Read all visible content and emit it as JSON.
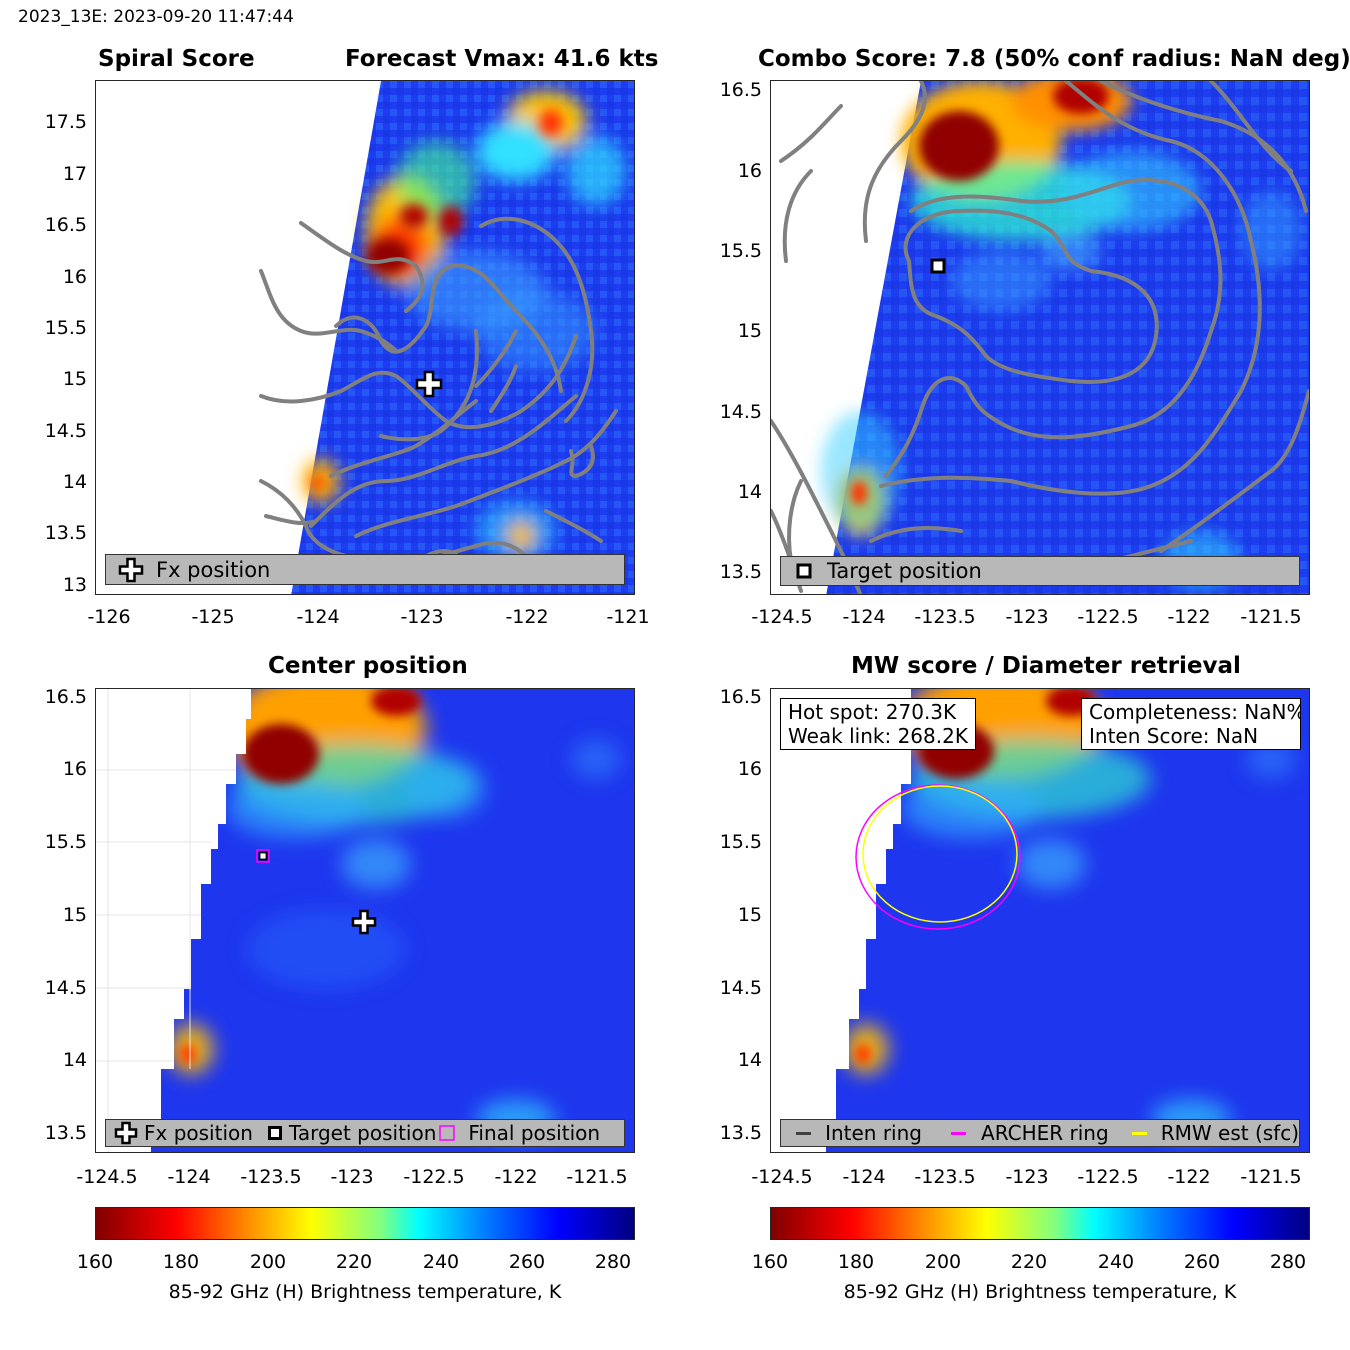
{
  "header": "2023_13E: 2023-09-20 11:47:44",
  "panels": {
    "spiral": {
      "title_left": "Spiral Score",
      "title_right": "Forecast Vmax: 41.6 kts",
      "xticks": [
        "-126",
        "-125",
        "-124",
        "-123",
        "-122",
        "-121"
      ],
      "yticks": [
        "17.5",
        "17",
        "16.5",
        "16",
        "15.5",
        "15",
        "14.5",
        "14",
        "13.5",
        "13"
      ],
      "legend": [
        "Fx position"
      ]
    },
    "combo": {
      "title": "Combo Score: 7.8  (50% conf radius: NaN deg)",
      "xticks": [
        "-124.5",
        "-124",
        "-123.5",
        "-123",
        "-122.5",
        "-122",
        "-121.5"
      ],
      "yticks": [
        "16.5",
        "16",
        "15.5",
        "15",
        "14.5",
        "14",
        "13.5"
      ],
      "legend": [
        "Target position"
      ]
    },
    "center": {
      "title": "Center position",
      "xticks": [
        "-124.5",
        "-124",
        "-123.5",
        "-123",
        "-122.5",
        "-122",
        "-121.5"
      ],
      "yticks": [
        "16.5",
        "16",
        "15.5",
        "15",
        "14.5",
        "14",
        "13.5"
      ],
      "legend": [
        "Fx position",
        "Target position",
        "Final position"
      ]
    },
    "mw": {
      "title": "MW score / Diameter retrieval",
      "xticks": [
        "-124.5",
        "-124",
        "-123.5",
        "-123",
        "-122.5",
        "-122",
        "-121.5"
      ],
      "yticks": [
        "16.5",
        "16",
        "15.5",
        "15",
        "14.5",
        "14",
        "13.5"
      ],
      "legend": [
        "Inten ring",
        "ARCHER ring",
        "RMW est (sfc)"
      ],
      "box_left": [
        "Hot spot: 270.3K",
        "Weak link: 268.2K"
      ],
      "box_right": [
        "Completeness: NaN%",
        "Inten Score: NaN"
      ]
    }
  },
  "colorbar": {
    "ticks": [
      "160",
      "180",
      "200",
      "220",
      "240",
      "260",
      "280"
    ],
    "label": "85-92 GHz (H) Brightness temperature, K",
    "range": [
      160,
      285
    ]
  },
  "colors": {
    "contour": "#808080",
    "archer_ring": "#ff00ff",
    "rmw_ring": "#ffff00",
    "inten_ring": "#404040",
    "final_marker": "#ff00ff"
  },
  "chart_data": [
    {
      "type": "heatmap",
      "title": "Spiral Score",
      "subtitle": "Forecast Vmax: 41.6 kts",
      "xlim": [
        -126.1,
        -121
      ],
      "ylim": [
        12.95,
        17.9
      ],
      "markers": [
        {
          "name": "Fx position",
          "x": -122.95,
          "y": 14.97
        }
      ]
    },
    {
      "type": "heatmap",
      "title": "Combo Score: 7.8  (50% conf radius: NaN deg)",
      "xlim": [
        -124.75,
        -121.4
      ],
      "ylim": [
        13.38,
        16.55
      ],
      "markers": [
        {
          "name": "Target position",
          "x": -123.5,
          "y": 15.41
        }
      ]
    },
    {
      "type": "heatmap",
      "title": "Center position",
      "xlim": [
        -124.6,
        -121.3
      ],
      "ylim": [
        13.35,
        16.55
      ],
      "markers": [
        {
          "name": "Fx position",
          "x": -122.95,
          "y": 14.97
        },
        {
          "name": "Target position",
          "x": -123.5,
          "y": 15.41
        },
        {
          "name": "Final position",
          "x": -123.5,
          "y": 15.41
        }
      ],
      "grid": true
    },
    {
      "type": "heatmap",
      "title": "MW score / Diameter retrieval",
      "xlim": [
        -124.75,
        -121.4
      ],
      "ylim": [
        13.35,
        16.55
      ],
      "rings": [
        {
          "name": "ARCHER ring",
          "cx": -123.5,
          "cy": 15.41,
          "rx": 0.5,
          "ry": 0.51
        },
        {
          "name": "RMW est (sfc)",
          "cx": -123.48,
          "cy": 15.41,
          "rx": 0.47,
          "ry": 0.47
        }
      ],
      "annotations": [
        "Hot spot: 270.3K",
        "Weak link: 268.2K",
        "Completeness: NaN%",
        "Inten Score: NaN"
      ]
    }
  ]
}
